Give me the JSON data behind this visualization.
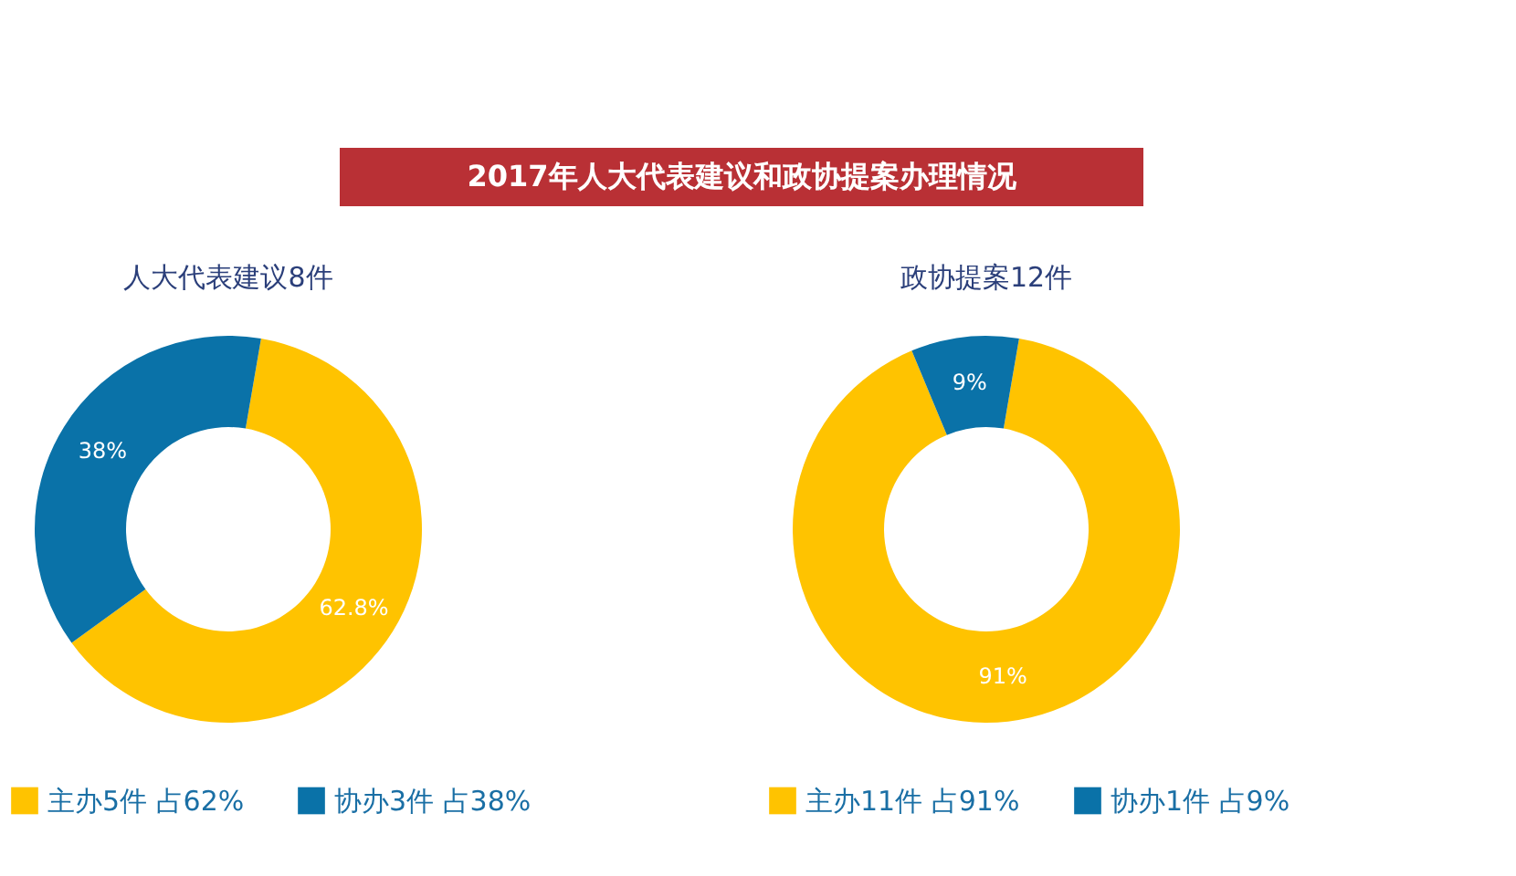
{
  "chart_data": [
    {
      "type": "other",
      "title": "2017年人大代表建议和政协提案办理情况"
    },
    {
      "type": "donut",
      "title": "人大代表建议8件",
      "categories": [
        "主办5件 占62%",
        "协办3件 占38%"
      ],
      "values": [
        62.8,
        38
      ],
      "colors": [
        "#ffc300",
        "#0a72a8"
      ],
      "value_labels": [
        "62.8%",
        "38%"
      ],
      "legend": "bottom"
    },
    {
      "type": "donut",
      "title": "政协提案12件",
      "categories": [
        "主办11件 占91%",
        "协办1件 占9%"
      ],
      "values": [
        91,
        9
      ],
      "colors": [
        "#ffc300",
        "#0a72a8"
      ],
      "value_labels": [
        "91%",
        "9%"
      ],
      "legend": "bottom"
    }
  ]
}
